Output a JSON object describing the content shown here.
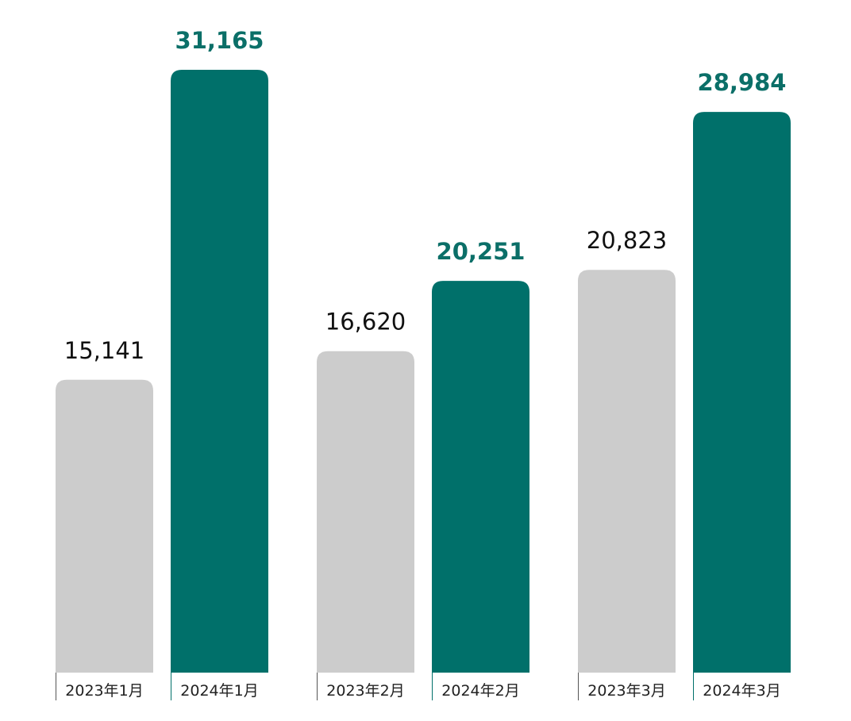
{
  "chart_data": {
    "type": "bar",
    "categories": [
      "2023年1月",
      "2024年1月",
      "2023年2月",
      "2024年2月",
      "2023年3月",
      "2024年3月"
    ],
    "values": [
      15141,
      31165,
      16620,
      20251,
      20823,
      28984
    ],
    "value_labels": [
      "15,141",
      "31,165",
      "16,620",
      "20,251",
      "20,823",
      "28,984"
    ],
    "title": "",
    "xlabel": "",
    "ylabel": "",
    "ylim": [
      0,
      31165
    ],
    "grid": false,
    "legend": "none",
    "colors": {
      "2023": "#cccccc",
      "2024": "#00706a",
      "label_2023": "#111111",
      "label_2024": "#0b6f68",
      "axis_tick": "#555555"
    }
  }
}
